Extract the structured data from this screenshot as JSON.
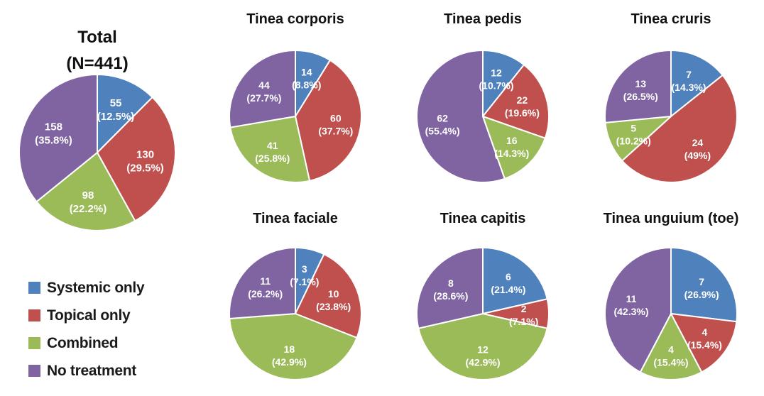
{
  "categories": [
    "Systemic only",
    "Topical only",
    "Combined",
    "No treatment"
  ],
  "colors": [
    "#4F81BD",
    "#C0504D",
    "#9BBB59",
    "#8064A2"
  ],
  "legend": {
    "items": [
      {
        "label": "Systemic only",
        "color": "#4F81BD"
      },
      {
        "label": "Topical only",
        "color": "#C0504D"
      },
      {
        "label": "Combined",
        "color": "#9BBB59"
      },
      {
        "label": "No treatment",
        "color": "#8064A2"
      }
    ]
  },
  "chart_data": [
    {
      "type": "pie",
      "title": "Total",
      "subtitle": "(N=441)",
      "categories": [
        "Systemic only",
        "Topical only",
        "Combined",
        "No treatment"
      ],
      "values": [
        55,
        130,
        98,
        158
      ],
      "labels": [
        [
          "55",
          "(12.5%)"
        ],
        [
          "130",
          "(29.5%)"
        ],
        [
          "98",
          "(22.2%)"
        ],
        [
          "158",
          "(35.8%)"
        ]
      ]
    },
    {
      "type": "pie",
      "title": "Tinea corporis",
      "categories": [
        "Systemic only",
        "Topical only",
        "Combined",
        "No treatment"
      ],
      "values": [
        14,
        60,
        41,
        44
      ],
      "labels": [
        [
          "14",
          "(8.8%)"
        ],
        [
          "60",
          "(37.7%)"
        ],
        [
          "41",
          "(25.8%)"
        ],
        [
          "44",
          "(27.7%)"
        ]
      ]
    },
    {
      "type": "pie",
      "title": "Tinea pedis",
      "categories": [
        "Systemic only",
        "Topical only",
        "Combined",
        "No treatment"
      ],
      "values": [
        12,
        22,
        16,
        62
      ],
      "labels": [
        [
          "12",
          "(10.7%)"
        ],
        [
          "22",
          "(19.6%)"
        ],
        [
          "16",
          "(14.3%)"
        ],
        [
          "62",
          "(55.4%)"
        ]
      ]
    },
    {
      "type": "pie",
      "title": "Tinea cruris",
      "categories": [
        "Systemic only",
        "Topical only",
        "Combined",
        "No treatment"
      ],
      "values": [
        7,
        24,
        5,
        13
      ],
      "labels": [
        [
          "7",
          "(14.3%)"
        ],
        [
          "24",
          "(49%)"
        ],
        [
          "5",
          "(10.2%)"
        ],
        [
          "13",
          "(26.5%)"
        ]
      ]
    },
    {
      "type": "pie",
      "title": "Tinea faciale",
      "categories": [
        "Systemic only",
        "Topical only",
        "Combined",
        "No treatment"
      ],
      "values": [
        3,
        10,
        18,
        11
      ],
      "labels": [
        [
          "3",
          "(7.1%)"
        ],
        [
          "10",
          "(23.8%)"
        ],
        [
          "18",
          "(42.9%)"
        ],
        [
          "11",
          "(26.2%)"
        ]
      ]
    },
    {
      "type": "pie",
      "title": "Tinea capitis",
      "categories": [
        "Systemic only",
        "Topical only",
        "Combined",
        "No treatment"
      ],
      "values": [
        6,
        2,
        12,
        8
      ],
      "labels": [
        [
          "6",
          "(21.4%)"
        ],
        [
          "2",
          "(7.1%)"
        ],
        [
          "12",
          "(42.9%)"
        ],
        [
          "8",
          "(28.6%)"
        ]
      ]
    },
    {
      "type": "pie",
      "title": "Tinea unguium (toe)",
      "categories": [
        "Systemic only",
        "Topical only",
        "Combined",
        "No treatment"
      ],
      "values": [
        7,
        4,
        4,
        11
      ],
      "labels": [
        [
          "7",
          "(26.9%)"
        ],
        [
          "4",
          "(15.4%)"
        ],
        [
          "4",
          "(15.4%)"
        ],
        [
          "11",
          "(42.3%)"
        ]
      ]
    }
  ]
}
